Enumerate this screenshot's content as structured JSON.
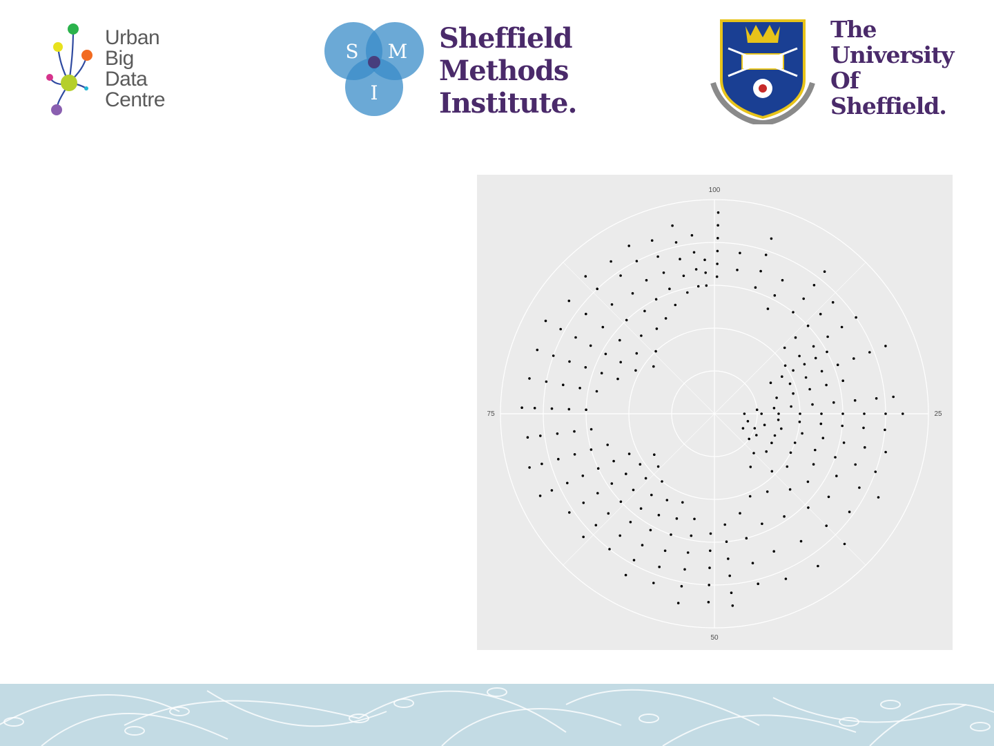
{
  "logos": {
    "ubdc": {
      "lines": [
        "Urban",
        "Big",
        "Data",
        "Centre"
      ],
      "dot_colors": [
        "#2bb24c",
        "#e8e21e",
        "#f26b21",
        "#d6338c",
        "#b5cf2b",
        "#22b5d4",
        "#8a5fb0"
      ]
    },
    "smi": {
      "lines": [
        "Sheffield",
        "Methods",
        "Institute."
      ],
      "circle_letters": [
        "S",
        "M",
        "I"
      ],
      "colors": {
        "circle": "#3a8cc8",
        "text": "#4a2a6a"
      }
    },
    "tuos": {
      "lines": [
        "The",
        "University",
        "Of",
        "Sheffield."
      ],
      "colors": {
        "shield": "#1a3f93",
        "crown": "#e7c31a",
        "text": "#4a2a6a"
      }
    }
  },
  "chart_data": {
    "type": "scatter",
    "coord": "polar",
    "title": "",
    "xlabel": "",
    "ylabel": "",
    "theta_ticks": [
      {
        "label": "100",
        "value": 100
      },
      {
        "label": "25",
        "value": 25
      },
      {
        "label": "50",
        "value": 50
      },
      {
        "label": "75",
        "value": 75
      }
    ],
    "theta_range": [
      0,
      100
    ],
    "r_range": [
      0,
      100
    ],
    "r_gridlines": [
      20,
      40,
      60,
      80
    ],
    "grid": true,
    "colors": {
      "panel": "#ebebeb",
      "grid": "#ffffff",
      "point": "#000000",
      "tick": "#4d4d4d"
    },
    "rays": [
      {
        "theta": 99.0,
        "r": [
          60,
          66,
          72
        ]
      },
      {
        "theta": 0.3,
        "r": [
          64,
          70,
          76,
          82,
          88,
          94
        ]
      },
      {
        "theta": 2.5,
        "r": [
          68,
          76
        ]
      },
      {
        "theta": 5.0,
        "r": [
          62,
          70,
          78,
          86
        ]
      },
      {
        "theta": 7.5,
        "r": [
          55,
          62,
          70
        ]
      },
      {
        "theta": 10.5,
        "r": [
          60,
          68,
          76,
          84
        ]
      },
      {
        "theta": 13.0,
        "r": [
          45,
          52,
          60,
          68,
          76
        ]
      },
      {
        "theta": 15.5,
        "r": [
          40,
          48,
          56,
          64,
          72,
          80
        ]
      },
      {
        "theta": 17.0,
        "r": [
          30,
          36,
          42,
          48,
          54,
          60
        ]
      },
      {
        "theta": 19.0,
        "r": [
          38,
          46,
          54,
          62,
          70,
          78,
          86
        ]
      },
      {
        "theta": 21.0,
        "r": [
          30,
          38,
          46,
          54,
          62
        ]
      },
      {
        "theta": 23.5,
        "r": [
          20,
          28,
          36,
          46,
          56,
          66,
          76,
          84
        ]
      },
      {
        "theta": 25.0,
        "r": [
          14,
          22,
          30,
          40,
          50,
          60,
          70,
          80,
          88
        ]
      },
      {
        "theta": 26.5,
        "r": [
          30,
          40,
          50,
          60,
          70,
          80
        ]
      },
      {
        "theta": 28.5,
        "r": [
          16,
          24,
          32,
          42,
          52,
          62,
          72,
          82
        ]
      },
      {
        "theta": 30.5,
        "r": [
          20,
          30,
          40,
          50,
          60,
          70,
          80
        ]
      },
      {
        "theta": 32.5,
        "r": [
          15,
          22,
          30,
          40,
          52,
          64,
          76,
          86
        ]
      },
      {
        "theta": 35.0,
        "r": [
          20,
          30,
          42,
          54,
          66,
          78
        ]
      },
      {
        "theta": 37.5,
        "r": [
          26,
          38,
          50,
          62,
          74,
          86
        ]
      },
      {
        "theta": 40.5,
        "r": [
          30,
          44,
          58,
          72,
          86
        ]
      },
      {
        "theta": 43.5,
        "r": [
          42,
          56,
          70,
          84
        ]
      },
      {
        "theta": 46.0,
        "r": [
          48,
          60,
          72,
          82
        ]
      },
      {
        "theta": 48.5,
        "r": [
          52,
          60,
          68,
          76,
          84,
          90
        ]
      },
      {
        "theta": 50.5,
        "r": [
          56,
          64,
          72,
          80,
          88
        ]
      },
      {
        "theta": 53.0,
        "r": [
          50,
          58,
          66,
          74,
          82,
          90
        ]
      },
      {
        "theta": 55.5,
        "r": [
          44,
          52,
          60,
          68,
          76,
          84
        ]
      },
      {
        "theta": 58.0,
        "r": [
          46,
          54,
          62,
          70,
          78,
          86
        ]
      },
      {
        "theta": 60.5,
        "r": [
          40,
          48,
          56,
          64,
          72,
          80
        ]
      },
      {
        "theta": 63.0,
        "r": [
          36,
          44,
          52,
          60,
          68,
          76,
          84
        ]
      },
      {
        "theta": 65.5,
        "r": [
          34,
          42,
          50,
          58,
          66,
          74,
          82
        ]
      },
      {
        "theta": 68.0,
        "r": [
          44,
          52,
          60,
          68,
          76,
          84,
          90
        ]
      },
      {
        "theta": 70.5,
        "r": [
          52,
          60,
          68,
          76,
          84,
          90
        ]
      },
      {
        "theta": 73.0,
        "r": [
          58,
          66,
          74,
          82,
          88
        ]
      },
      {
        "theta": 75.5,
        "r": [
          60,
          68,
          76,
          84,
          90
        ]
      },
      {
        "theta": 78.0,
        "r": [
          56,
          64,
          72,
          80,
          88
        ]
      },
      {
        "theta": 80.5,
        "r": [
          48,
          56,
          64,
          72,
          80,
          88
        ]
      },
      {
        "theta": 83.0,
        "r": [
          42,
          50,
          58,
          66,
          74,
          82,
          90
        ]
      },
      {
        "theta": 85.5,
        "r": [
          36,
          46,
          56,
          66,
          76,
          86
        ]
      },
      {
        "theta": 88.0,
        "r": [
          40,
          50,
          60,
          70,
          80,
          88
        ]
      },
      {
        "theta": 90.5,
        "r": [
          48,
          58,
          68,
          78,
          86
        ]
      },
      {
        "theta": 92.5,
        "r": [
          50,
          60,
          70,
          80,
          88
        ]
      },
      {
        "theta": 94.5,
        "r": [
          54,
          62,
          70,
          78,
          86
        ]
      },
      {
        "theta": 96.5,
        "r": [
          58,
          66,
          74,
          82,
          90
        ]
      },
      {
        "theta": 98.0,
        "r": [
          60,
          68,
          76,
          84
        ]
      }
    ]
  }
}
